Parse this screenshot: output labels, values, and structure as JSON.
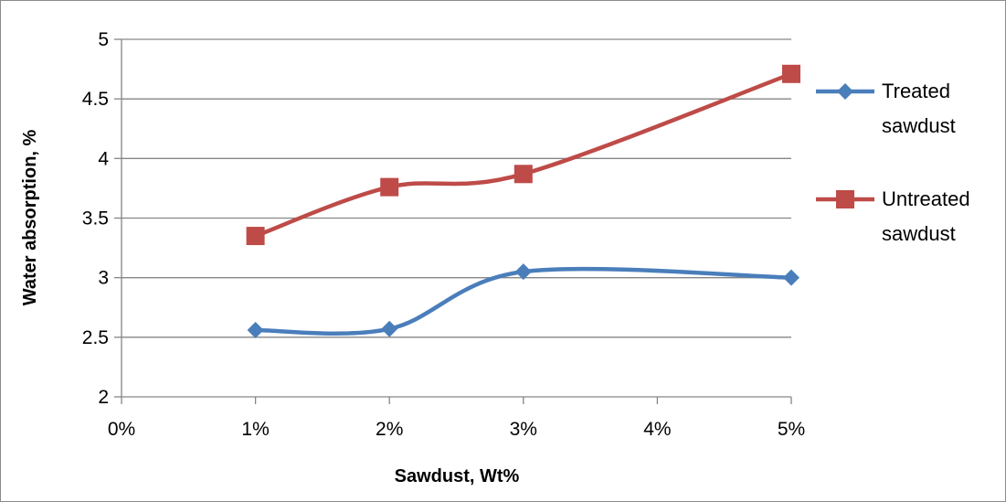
{
  "chart_data": {
    "type": "line",
    "categories": [
      "0%",
      "1%",
      "2%",
      "3%",
      "4%",
      "5%"
    ],
    "x_tick_labels": [
      "0%",
      "1%",
      "2%",
      "3%",
      "4%",
      "5%"
    ],
    "y_tick_labels": [
      "2",
      "2.5",
      "3",
      "3.5",
      "4",
      "4.5",
      "5"
    ],
    "xlabel": "Sawdust, Wt%",
    "ylabel": "Water absorption, %",
    "ylim": [
      2,
      5
    ],
    "xlim": [
      0,
      5
    ],
    "grid": "horizontal",
    "smooth": true,
    "legend_position": "right",
    "series": [
      {
        "name": "Treated sawdust",
        "legend_lines": [
          "Treated",
          "sawdust"
        ],
        "color": "#4a7ebb",
        "marker": "diamond",
        "x": [
          1,
          2,
          3,
          5
        ],
        "values": [
          2.56,
          2.57,
          3.05,
          3.0
        ]
      },
      {
        "name": "Untreated sawdust",
        "legend_lines": [
          "Untreated",
          "sawdust"
        ],
        "color": "#be4b48",
        "marker": "square",
        "x": [
          1,
          2,
          3,
          5
        ],
        "values": [
          3.35,
          3.76,
          3.87,
          4.71
        ]
      }
    ]
  }
}
